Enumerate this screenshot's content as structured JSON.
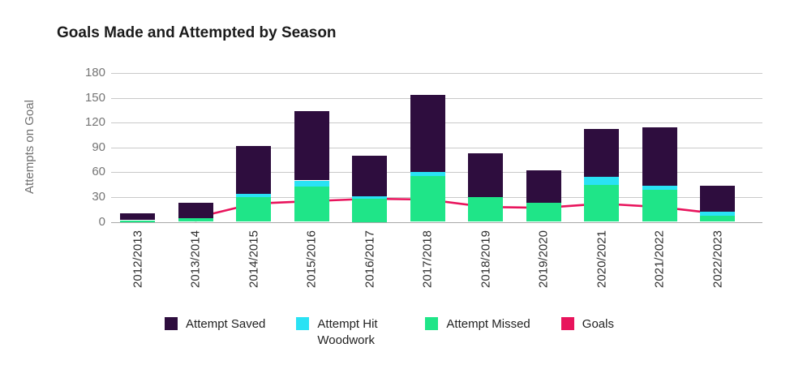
{
  "title": "Goals Made and Attempted by Season",
  "y_axis_title": "Attempts on Goal",
  "chart_data": {
    "type": "bar",
    "stacked": true,
    "grid": true,
    "legend_position": "bottom",
    "title": "Goals Made and Attempted by Season",
    "xlabel": "",
    "ylabel": "Attempts on Goal",
    "ylim": [
      0,
      180
    ],
    "yticks": [
      0,
      30,
      60,
      90,
      120,
      150,
      180
    ],
    "categories": [
      "2012/2013",
      "2013/2014",
      "2014/2015",
      "2015/2016",
      "2016/2017",
      "2017/2018",
      "2018/2019",
      "2019/2020",
      "2020/2021",
      "2021/2022",
      "2022/2023"
    ],
    "series": [
      {
        "name": "Attempt Missed",
        "color": "#1fe588",
        "values": [
          2,
          4,
          30,
          43,
          28,
          55,
          30,
          23,
          45,
          39,
          7
        ]
      },
      {
        "name": "Attempt Hit Woodwork",
        "color": "#2ae2f4",
        "values": [
          0,
          0,
          4,
          7,
          3,
          5,
          0,
          0,
          9,
          5,
          5
        ]
      },
      {
        "name": "Attempt Saved",
        "color": "#2e0d3e",
        "values": [
          8,
          19,
          58,
          84,
          49,
          94,
          53,
          39,
          58,
          70,
          32
        ]
      }
    ],
    "line_series": {
      "name": "Goals",
      "color": "#e8145c",
      "values": [
        null,
        5,
        22,
        25,
        28,
        27,
        18,
        17,
        22,
        18,
        10
      ]
    }
  },
  "legend": [
    {
      "label": "Attempt Saved",
      "color": "#2e0d3e"
    },
    {
      "label": "Attempt Hit Woodwork",
      "color": "#2ae2f4"
    },
    {
      "label": "Attempt Missed",
      "color": "#1fe588"
    },
    {
      "label": "Goals",
      "color": "#e8145c"
    }
  ],
  "colors": {
    "attempt_saved": "#2e0d3e",
    "attempt_hit_woodwork": "#2ae2f4",
    "attempt_missed": "#1fe588",
    "goals_line": "#e8145c",
    "goals_dot_ring": "#edb3c8",
    "gridline": "#c9c9c9",
    "axis_text": "#757575",
    "title_text": "#1b1b1b"
  }
}
